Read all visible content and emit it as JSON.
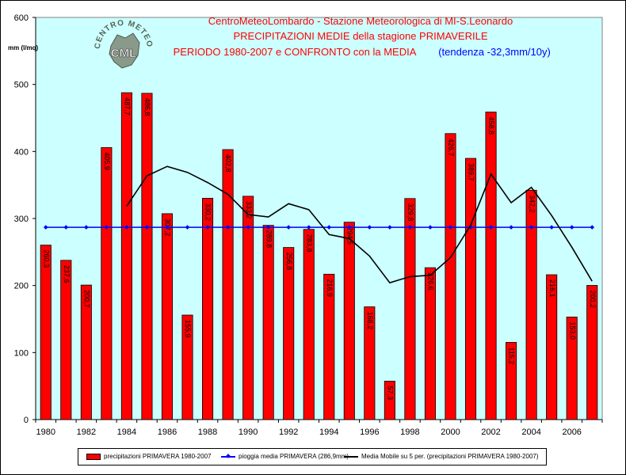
{
  "chart_data": {
    "type": "bar",
    "title_lines": [
      "CentroMeteoLombardo - Stazione Meteorologica di MI-S.Leonardo",
      "PRECIPITAZIONI MEDIE della stagione PRIMAVERILE",
      "PERIODO 1980-2007 e CONFRONTO con la MEDIA"
    ],
    "trend_text": "(tendenza -32,3mm/10y)",
    "ylabel": "mm (l/mq)",
    "ylim": [
      0,
      600
    ],
    "yticks": [
      0,
      100,
      200,
      300,
      400,
      500,
      600
    ],
    "categories": [
      1980,
      1981,
      1982,
      1983,
      1984,
      1985,
      1986,
      1987,
      1988,
      1989,
      1990,
      1991,
      1992,
      1993,
      1994,
      1995,
      1996,
      1997,
      1998,
      1999,
      2000,
      2001,
      2002,
      2003,
      2004,
      2005,
      2006,
      2007
    ],
    "xtick_labels": [
      "1980",
      "1982",
      "1984",
      "1986",
      "1988",
      "1990",
      "1992",
      "1994",
      "1996",
      "1998",
      "2000",
      "2002",
      "2004",
      "2006"
    ],
    "series": [
      {
        "name": "precipitazioni PRIMAVERA 1980-2007",
        "kind": "bar",
        "color": "#ff0000",
        "values": [
          260.3,
          237.6,
          200.7,
          405.9,
          487.7,
          486.8,
          307.2,
          155.9,
          330.2,
          402.8,
          333.2,
          289.8,
          256.8,
          283.8,
          216.9,
          294.5,
          168.2,
          57.3,
          329.8,
          226.6,
          426.7,
          389.7,
          458.8,
          115.2,
          342.2,
          216.1,
          153.0,
          200.2
        ],
        "labels": [
          "260,3",
          "237,6",
          "200,7",
          "405,9",
          "487,7",
          "486,8",
          "307,2",
          "155,9",
          "330,2",
          "402,8",
          "333,2",
          "289,8",
          "256,8",
          "283,8",
          "216,9",
          "294,5",
          "168,2",
          "57,3",
          "329,8",
          "226,6",
          "426,7",
          "389,7",
          "458,8",
          "115,2",
          "342,2",
          "216,1",
          "153,0",
          "200,2"
        ]
      },
      {
        "name": "pioggia media PRIMAVERA (286,9mm)",
        "kind": "line-markers",
        "color": "#0000ff",
        "value": 286.9
      },
      {
        "name": "Media Mobile su 5 per. (precipitazioni PRIMAVERA 1980-2007)",
        "kind": "line",
        "color": "#000000",
        "values": [
          null,
          null,
          null,
          null,
          318.4,
          363.7,
          377.7,
          368.8,
          353.6,
          336.1,
          305.9,
          302.3,
          322.1,
          313.2,
          276.0,
          270.1,
          244.0,
          204.1,
          213.3,
          215.3,
          241.7,
          290.2,
          366.3,
          323.6,
          346.5,
          304.4,
          257.1,
          206.5
        ]
      }
    ],
    "legend_position": "bottom",
    "grid": false
  },
  "logo": {
    "text_top": "CENTRO METEO LOMBARDO",
    "text_center": "CML"
  }
}
